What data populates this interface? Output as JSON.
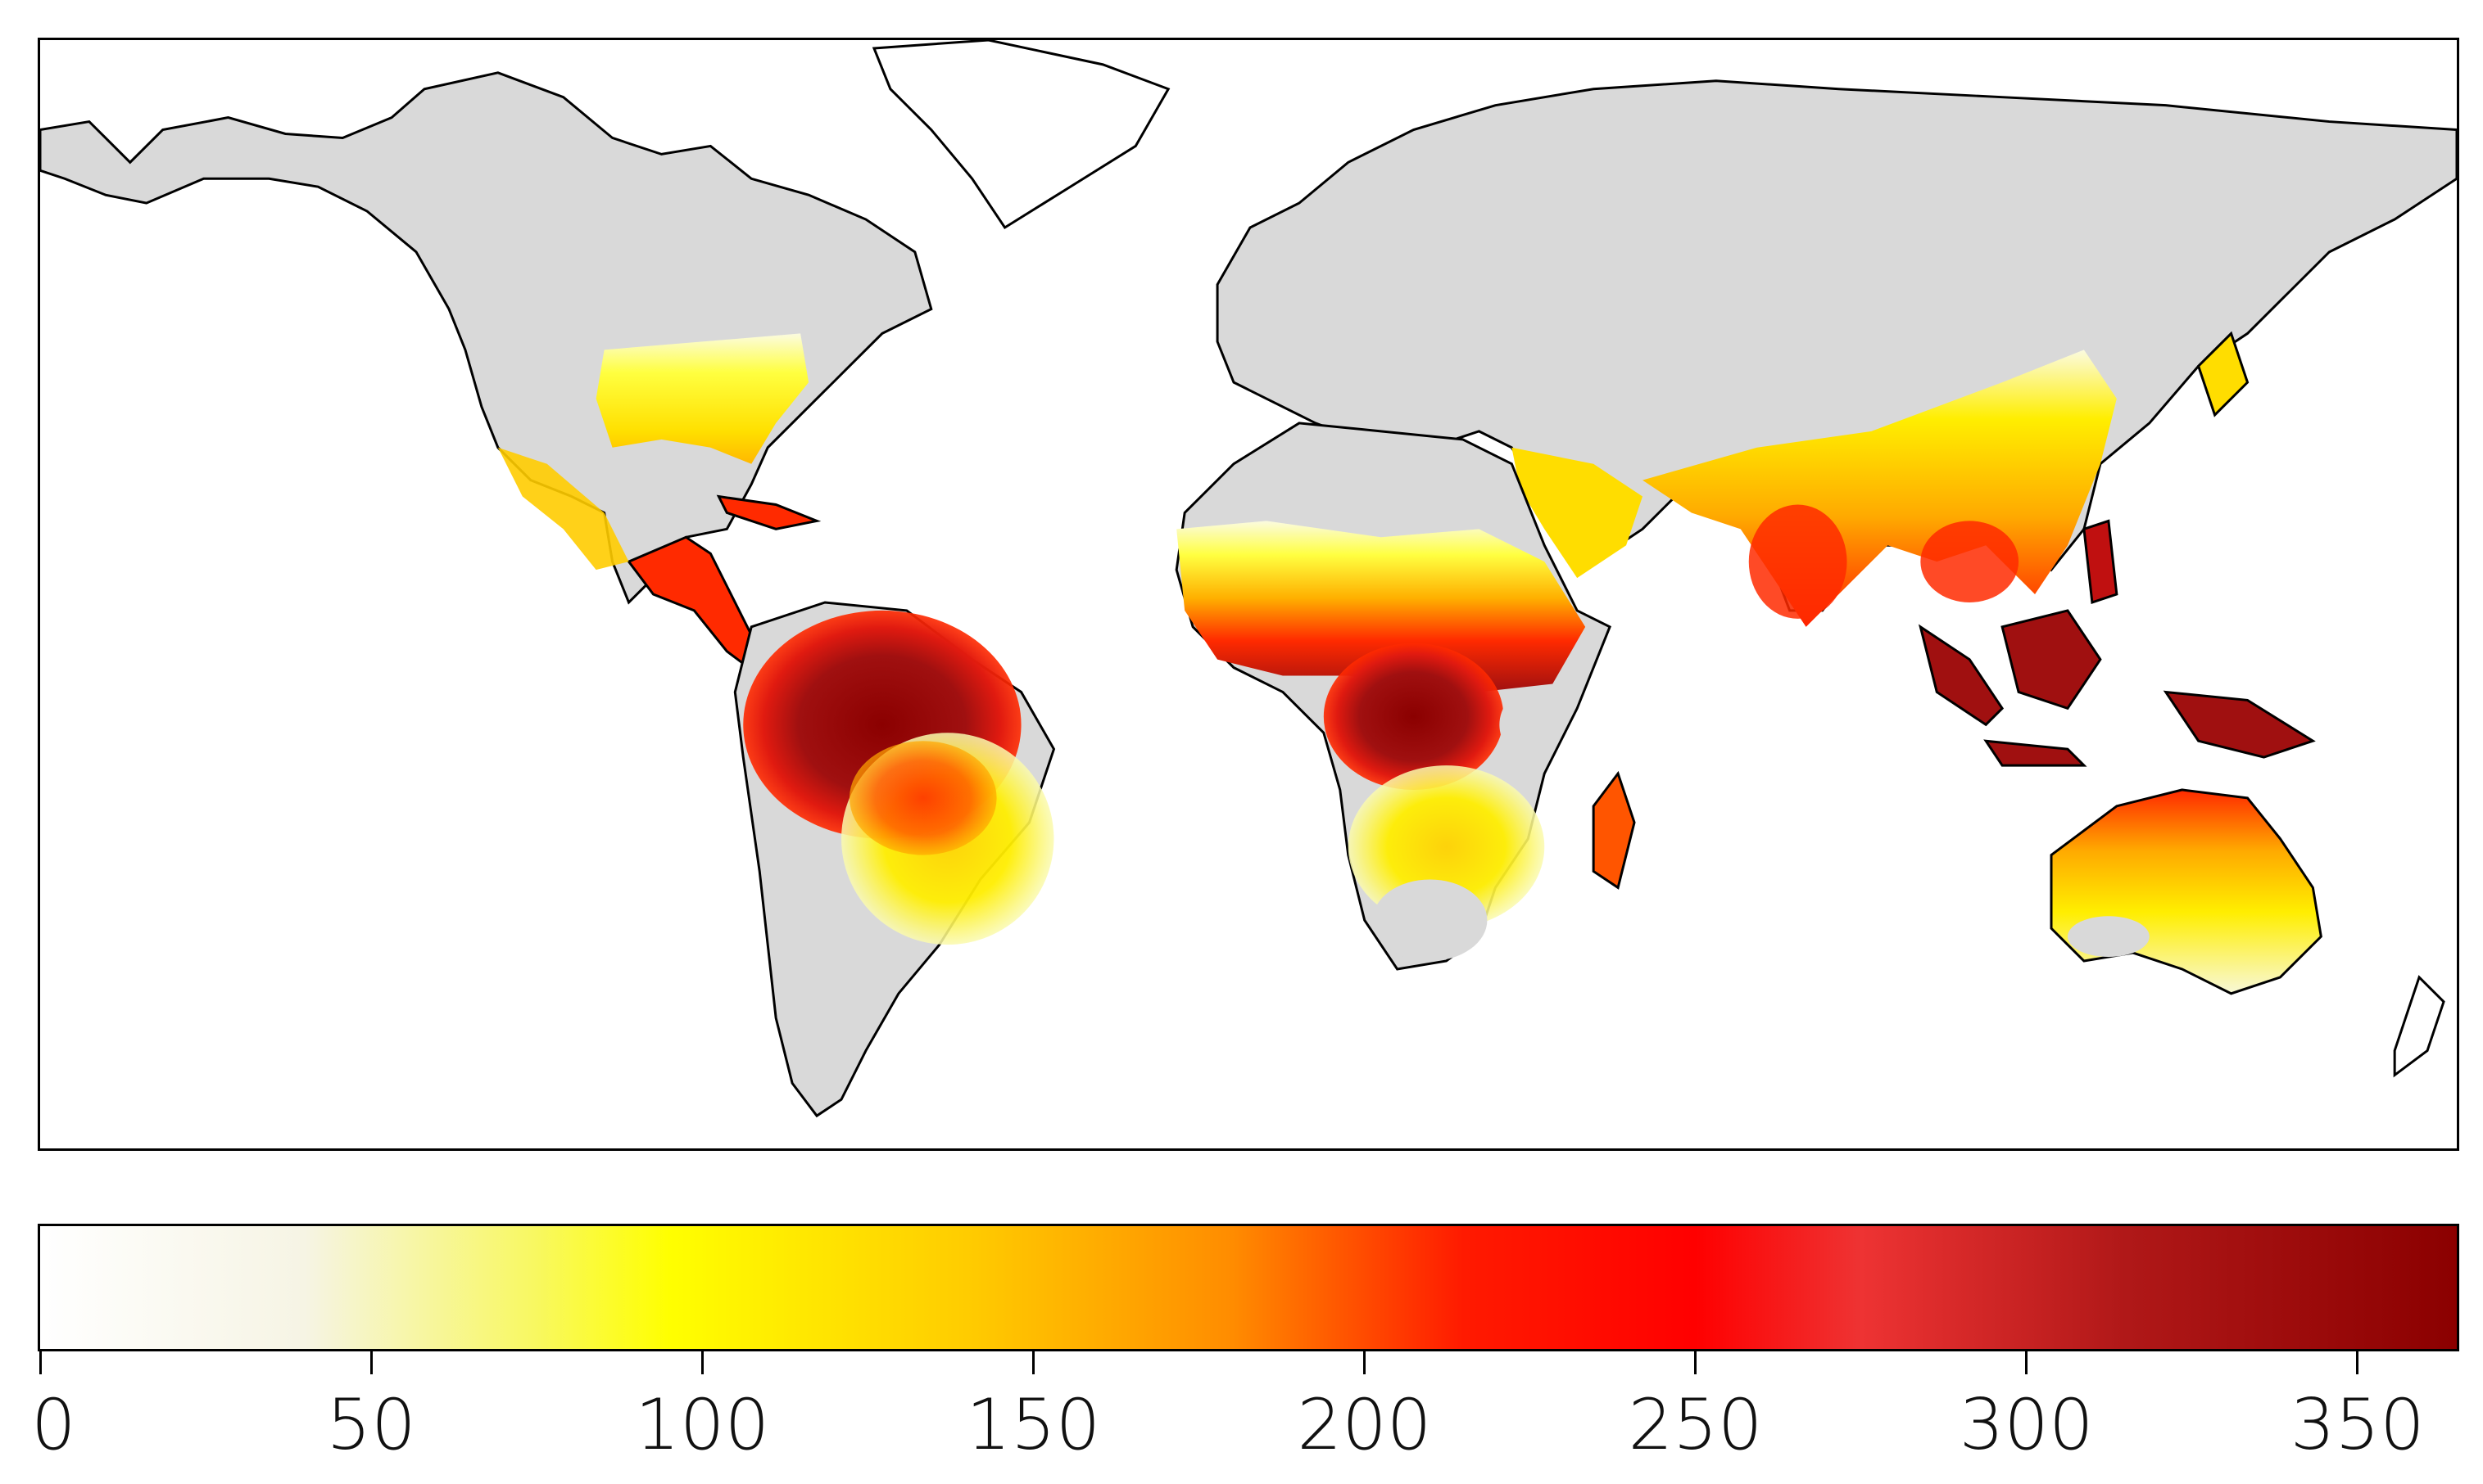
{
  "map": {
    "land_color": "#d9d9d9",
    "water_color": "#ffffff",
    "coastline_color": "#000000"
  },
  "colorbar": {
    "min": 0,
    "max": 365,
    "stops": [
      {
        "value": 0,
        "color": "#ffffff"
      },
      {
        "value": 40,
        "color": "#f6f4e4"
      },
      {
        "value": 75,
        "color": "#f8f860"
      },
      {
        "value": 95,
        "color": "#ffff00"
      },
      {
        "value": 140,
        "color": "#ffcc00"
      },
      {
        "value": 180,
        "color": "#ff8c00"
      },
      {
        "value": 215,
        "color": "#ff1a00"
      },
      {
        "value": 250,
        "color": "#ff0000"
      },
      {
        "value": 275,
        "color": "#ee3333"
      },
      {
        "value": 315,
        "color": "#b01818"
      },
      {
        "value": 365,
        "color": "#8b0000"
      }
    ],
    "ticks": [
      {
        "value": 0,
        "label": "0"
      },
      {
        "value": 50,
        "label": "50"
      },
      {
        "value": 100,
        "label": "100"
      },
      {
        "value": 150,
        "label": "150"
      },
      {
        "value": 200,
        "label": "200"
      },
      {
        "value": 250,
        "label": "250"
      },
      {
        "value": 300,
        "label": "300"
      },
      {
        "value": 350,
        "label": "350"
      }
    ]
  }
}
